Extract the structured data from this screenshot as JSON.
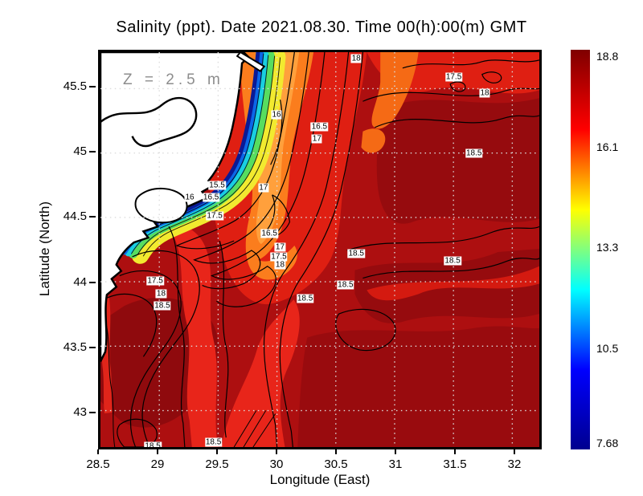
{
  "title": "Salinity (ppt). Date 2021.08.30. Time 00(h):00(m) GMT",
  "map": {
    "depth_annotation": "Z = 2.5 m",
    "x_axis": {
      "label": "Longitude (East)",
      "ticks": [
        "28.5",
        "29",
        "29.5",
        "30",
        "30.5",
        "31",
        "31.5",
        "32"
      ]
    },
    "y_axis": {
      "label": "Latitude (North)",
      "ticks": [
        "45.5",
        "45",
        "44.5",
        "44",
        "43.5",
        "43"
      ]
    }
  },
  "colorbar": {
    "labels": [
      "18.8",
      "16.1",
      "13.3",
      "10.5",
      "7.68"
    ],
    "min": 7.68,
    "max": 18.8,
    "stops": [
      "#7f0000",
      "#ff0000",
      "#ffff00",
      "#00ffff",
      "#0000ff",
      "#00008f"
    ]
  },
  "chart_data": {
    "type": "heatmap",
    "variable": "Salinity (ppt)",
    "date": "2021.08.30",
    "time": "00(h):00(m) GMT",
    "depth": "Z = 2.5 m",
    "xlabel": "Longitude (East)",
    "ylabel": "Latitude (North)",
    "x_ticks": [
      28.5,
      29,
      29.5,
      30,
      30.5,
      31,
      31.5,
      32
    ],
    "y_ticks": [
      45.5,
      45,
      44.5,
      44,
      43.5,
      43
    ],
    "x_range": [
      28.5,
      32.23
    ],
    "y_range": [
      42.72,
      45.78
    ],
    "grid": true,
    "colorbar": {
      "min": 7.68,
      "max": 18.8,
      "ticks": [
        18.8,
        16.1,
        13.3,
        10.5,
        7.68
      ],
      "palette": "jet",
      "position": "right"
    },
    "contour_labels": [
      {
        "value": "18",
        "lon": 30.65,
        "lat": 45.77
      },
      {
        "value": "17.5",
        "lon": 31.47,
        "lat": 45.59
      },
      {
        "value": "18",
        "lon": 31.73,
        "lat": 45.47
      },
      {
        "value": "16",
        "lon": 29.98,
        "lat": 45.3
      },
      {
        "value": "16.5",
        "lon": 30.34,
        "lat": 45.21
      },
      {
        "value": "17",
        "lon": 30.32,
        "lat": 45.12
      },
      {
        "value": "18.5",
        "lon": 31.64,
        "lat": 45.01
      },
      {
        "value": "17",
        "lon": 29.87,
        "lat": 44.74
      },
      {
        "value": "15.5",
        "lon": 29.48,
        "lat": 44.76
      },
      {
        "value": "16",
        "lon": 29.25,
        "lat": 44.67
      },
      {
        "value": "16.5",
        "lon": 29.43,
        "lat": 44.67
      },
      {
        "value": "17.5",
        "lon": 29.46,
        "lat": 44.53
      },
      {
        "value": "16.5",
        "lon": 29.92,
        "lat": 44.39
      },
      {
        "value": "17",
        "lon": 30.01,
        "lat": 44.29
      },
      {
        "value": "17.5",
        "lon": 30.0,
        "lat": 44.21
      },
      {
        "value": "18",
        "lon": 30.01,
        "lat": 44.15
      },
      {
        "value": "18.5",
        "lon": 30.65,
        "lat": 44.24
      },
      {
        "value": "18.5",
        "lon": 31.46,
        "lat": 44.18
      },
      {
        "value": "18.5",
        "lon": 30.56,
        "lat": 44.0
      },
      {
        "value": "18.5",
        "lon": 30.22,
        "lat": 43.89
      },
      {
        "value": "17.5",
        "lon": 28.96,
        "lat": 44.03
      },
      {
        "value": "18",
        "lon": 29.01,
        "lat": 43.93
      },
      {
        "value": "18.5",
        "lon": 29.02,
        "lat": 43.84
      },
      {
        "value": "18.5",
        "lon": 28.94,
        "lat": 42.74
      },
      {
        "value": "18.5",
        "lon": 29.45,
        "lat": 42.79
      }
    ]
  }
}
